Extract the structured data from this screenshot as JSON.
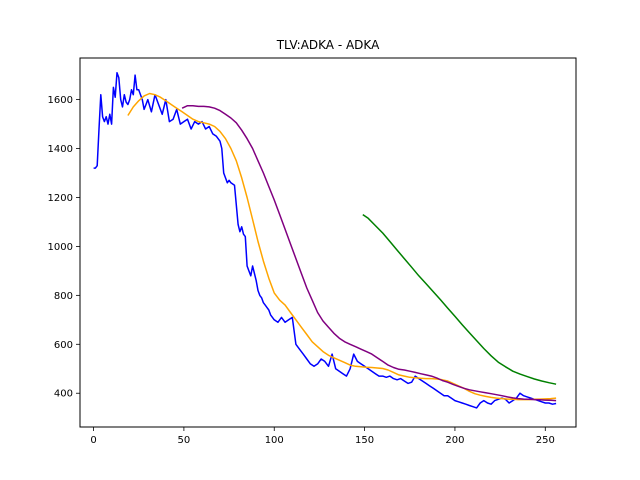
{
  "chart_data": {
    "type": "line",
    "title": "TLV:ADKA - ADKA",
    "xlabel": "",
    "ylabel": "",
    "xlim": [
      -7.5,
      267
    ],
    "ylim": [
      262,
      1770
    ],
    "xticks": [
      0,
      50,
      100,
      150,
      200,
      250
    ],
    "yticks": [
      400,
      600,
      800,
      1000,
      1200,
      1400,
      1600
    ],
    "grid": false,
    "series": [
      {
        "color": "#0000ff",
        "x": [
          0,
          1,
          2,
          3,
          4,
          5,
          6,
          7,
          8,
          9,
          10,
          11,
          12,
          13,
          14,
          15,
          16,
          17,
          18,
          19,
          20,
          21,
          22,
          23,
          24,
          25,
          26,
          27,
          28,
          29,
          30,
          32,
          34,
          36,
          38,
          40,
          42,
          44,
          46,
          48,
          50,
          52,
          54,
          56,
          58,
          60,
          62,
          64,
          66,
          68,
          70,
          71,
          72,
          73,
          74,
          75,
          76,
          78,
          80,
          81,
          82,
          83,
          84,
          85,
          86,
          87,
          88,
          89,
          90,
          91,
          92,
          93,
          94,
          95,
          96,
          97,
          98,
          100,
          102,
          104,
          106,
          108,
          110,
          112,
          114,
          116,
          118,
          120,
          122,
          124,
          126,
          128,
          130,
          132,
          134,
          136,
          138,
          140,
          142,
          144,
          146,
          148,
          150,
          152,
          154,
          156,
          158,
          160,
          162,
          164,
          166,
          168,
          170,
          172,
          174,
          176,
          178,
          180,
          182,
          184,
          186,
          188,
          190,
          192,
          194,
          196,
          198,
          200,
          202,
          204,
          206,
          208,
          210,
          212,
          214,
          216,
          218,
          220,
          222,
          224,
          226,
          228,
          230,
          232,
          234,
          236,
          238,
          240,
          242,
          244,
          246,
          248,
          250,
          252,
          254,
          256
        ],
        "y": [
          1320,
          1320,
          1330,
          1480,
          1620,
          1530,
          1510,
          1530,
          1500,
          1540,
          1500,
          1650,
          1610,
          1710,
          1690,
          1600,
          1570,
          1620,
          1590,
          1580,
          1600,
          1640,
          1620,
          1700,
          1640,
          1640,
          1620,
          1600,
          1560,
          1580,
          1600,
          1550,
          1620,
          1580,
          1540,
          1600,
          1510,
          1520,
          1560,
          1500,
          1510,
          1520,
          1480,
          1510,
          1500,
          1510,
          1480,
          1490,
          1460,
          1450,
          1430,
          1400,
          1300,
          1280,
          1260,
          1270,
          1260,
          1250,
          1090,
          1060,
          1080,
          1050,
          1040,
          920,
          900,
          880,
          920,
          890,
          860,
          820,
          800,
          790,
          770,
          760,
          750,
          740,
          720,
          700,
          690,
          710,
          690,
          700,
          710,
          600,
          580,
          560,
          540,
          520,
          510,
          520,
          540,
          530,
          510,
          560,
          500,
          490,
          480,
          470,
          500,
          560,
          530,
          520,
          510,
          500,
          490,
          480,
          470,
          470,
          465,
          470,
          460,
          455,
          460,
          450,
          440,
          445,
          470,
          460,
          450,
          440,
          430,
          420,
          410,
          400,
          390,
          390,
          380,
          370,
          365,
          360,
          355,
          350,
          345,
          340,
          360,
          370,
          360,
          355,
          370,
          375,
          380,
          375,
          360,
          370,
          380,
          400,
          390,
          385,
          380,
          375,
          370,
          365,
          360,
          360,
          355,
          358
        ]
      },
      {
        "color": "#ffa500",
        "x": [
          19,
          22,
          25,
          28,
          31,
          34,
          37,
          40,
          43,
          46,
          49,
          52,
          55,
          58,
          61,
          64,
          67,
          70,
          73,
          76,
          79,
          82,
          85,
          88,
          91,
          94,
          97,
          100,
          103,
          106,
          109,
          112,
          115,
          118,
          121,
          124,
          127,
          130,
          133,
          136,
          139,
          142,
          145,
          148,
          151,
          154,
          157,
          160,
          163,
          166,
          169,
          172,
          175,
          178,
          181,
          184,
          187,
          190,
          193,
          196,
          199,
          202,
          205,
          208,
          211,
          214,
          217,
          220,
          223,
          226,
          229,
          232,
          235,
          238,
          241,
          244,
          247,
          250,
          253,
          256
        ],
        "y": [
          1535,
          1570,
          1595,
          1615,
          1625,
          1620,
          1610,
          1595,
          1580,
          1565,
          1550,
          1535,
          1520,
          1510,
          1505,
          1500,
          1490,
          1470,
          1440,
          1400,
          1350,
          1280,
          1200,
          1110,
          1020,
          940,
          870,
          810,
          780,
          760,
          730,
          700,
          670,
          640,
          610,
          590,
          570,
          555,
          545,
          535,
          525,
          515,
          510,
          508,
          506,
          505,
          503,
          501,
          495,
          485,
          475,
          470,
          465,
          463,
          461,
          460,
          460,
          458,
          455,
          450,
          440,
          430,
          420,
          408,
          398,
          392,
          387,
          383,
          380,
          378,
          376,
          375,
          374,
          374,
          374,
          375,
          376,
          377,
          378,
          380
        ]
      },
      {
        "color": "#800080",
        "x": [
          49,
          52,
          55,
          58,
          61,
          64,
          67,
          70,
          73,
          76,
          79,
          82,
          85,
          88,
          91,
          94,
          97,
          100,
          103,
          106,
          109,
          112,
          115,
          118,
          121,
          124,
          127,
          130,
          133,
          136,
          139,
          142,
          145,
          148,
          151,
          154,
          157,
          160,
          163,
          166,
          169,
          172,
          175,
          178,
          181,
          184,
          187,
          190,
          193,
          196,
          199,
          202,
          205,
          208,
          211,
          214,
          217,
          220,
          223,
          226,
          229,
          232,
          235,
          238,
          241,
          244,
          247,
          250,
          253,
          256
        ],
        "y": [
          1565,
          1575,
          1575,
          1572,
          1572,
          1570,
          1565,
          1555,
          1540,
          1525,
          1505,
          1475,
          1440,
          1400,
          1350,
          1300,
          1245,
          1190,
          1130,
          1070,
          1010,
          950,
          890,
          830,
          780,
          730,
          695,
          670,
          645,
          625,
          610,
          600,
          590,
          580,
          570,
          560,
          545,
          530,
          515,
          505,
          498,
          495,
          490,
          485,
          480,
          475,
          470,
          462,
          452,
          445,
          436,
          428,
          420,
          414,
          410,
          406,
          402,
          398,
          394,
          390,
          385,
          381,
          378,
          376,
          375,
          374,
          373,
          372,
          371,
          370
        ]
      },
      {
        "color": "#008000",
        "x": [
          149,
          152,
          156,
          160,
          164,
          168,
          172,
          176,
          180,
          184,
          188,
          192,
          196,
          200,
          204,
          208,
          212,
          216,
          220,
          224,
          228,
          232,
          236,
          240,
          244,
          248,
          252,
          256
        ],
        "y": [
          1130,
          1115,
          1085,
          1055,
          1020,
          985,
          950,
          915,
          880,
          848,
          815,
          782,
          748,
          715,
          680,
          647,
          615,
          583,
          553,
          527,
          508,
          490,
          478,
          468,
          458,
          450,
          443,
          437
        ]
      }
    ]
  }
}
